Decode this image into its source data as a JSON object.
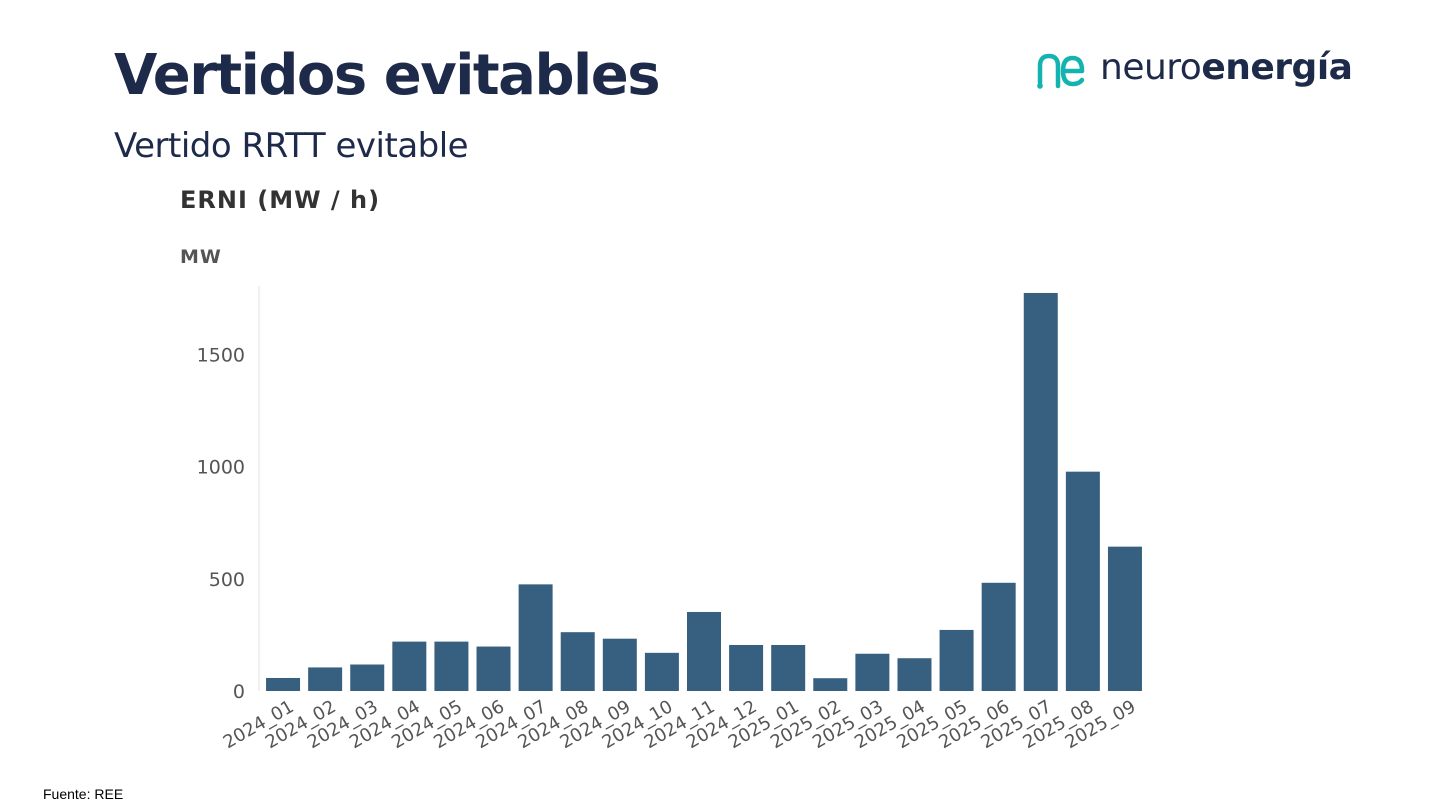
{
  "page": {
    "title": "Vertidos evitables",
    "subtitle": "Vertido RRTT evitable",
    "logo": {
      "prefix": "neuro",
      "suffix": "energía",
      "icon": "ne-logo-icon"
    },
    "source": "Fuente: REE"
  },
  "colors": {
    "bar": "#375f80",
    "heading": "#1d2a4a",
    "logo_teal": "#14b3b0",
    "axis": "#e0e0e0",
    "tick_text": "#555555"
  },
  "chart_data": {
    "type": "bar",
    "title": "ERNI (MW / h)",
    "ylabel": "MW",
    "xlabel": "",
    "categories": [
      "2024_01",
      "2024_02",
      "2024_03",
      "2024_04",
      "2024_05",
      "2024_06",
      "2024_07",
      "2024_08",
      "2024_09",
      "2024_10",
      "2024_11",
      "2024_12",
      "2025_01",
      "2025_02",
      "2025_03",
      "2025_04",
      "2025_05",
      "2025_06",
      "2025_07",
      "2025_08",
      "2025_09"
    ],
    "values": [
      58,
      105,
      118,
      220,
      220,
      198,
      475,
      262,
      233,
      170,
      352,
      205,
      205,
      57,
      166,
      146,
      272,
      482,
      1773,
      977,
      643
    ],
    "yticks": [
      0,
      500,
      1000,
      1500
    ],
    "ylim": [
      0,
      1800
    ],
    "grid": false,
    "legend": "none"
  }
}
